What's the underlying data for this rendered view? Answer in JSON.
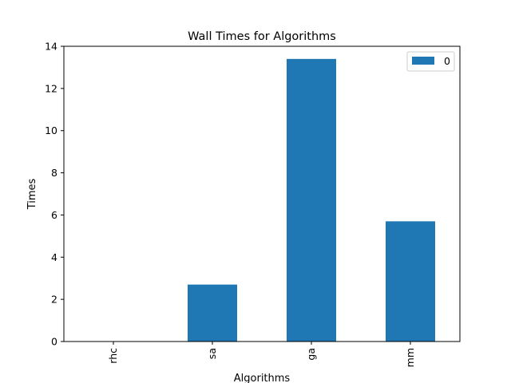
{
  "chart_data": {
    "type": "bar",
    "title": "Wall Times for Algorithms",
    "xlabel": "Algorithms",
    "ylabel": "Times",
    "categories": [
      "rhc",
      "sa",
      "ga",
      "mm"
    ],
    "series": [
      {
        "name": "0",
        "values": [
          0.0,
          2.7,
          13.4,
          5.7
        ],
        "color": "#1f77b4"
      }
    ],
    "ylim": [
      0,
      14
    ],
    "yticks": [
      0,
      2,
      4,
      6,
      8,
      10,
      12,
      14
    ],
    "grid": false,
    "legend_position": "top-right",
    "x_tick_rotation": "vertical"
  }
}
